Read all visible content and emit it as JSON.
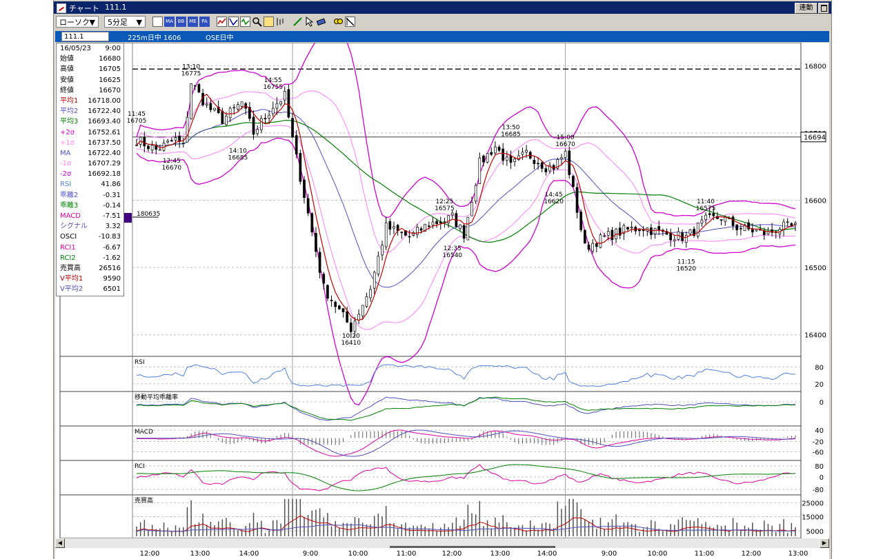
{
  "window": {
    "title": "チャート",
    "symbol": "111.1",
    "link_label": "連動"
  },
  "toolbar": {
    "chart_type": "ローソク",
    "interval": "5分足",
    "buttons": [
      "MA",
      "BB",
      "ME",
      "PA"
    ]
  },
  "symbol_bar": {
    "code": "111.1",
    "name": "225m日中 1606",
    "market": "OSE日中"
  },
  "info": [
    {
      "k": "16/05/23",
      "v": "9:00",
      "c": "#000000"
    },
    {
      "k": "始値",
      "v": "16680",
      "c": "#000000"
    },
    {
      "k": "高値",
      "v": "16705",
      "c": "#000000"
    },
    {
      "k": "安値",
      "v": "16625",
      "c": "#000000"
    },
    {
      "k": "終値",
      "v": "16670",
      "c": "#000000"
    },
    {
      "k": "平均1",
      "v": "16718.00",
      "c": "#c00000"
    },
    {
      "k": "平均2",
      "v": "16722.40",
      "c": "#5050c0"
    },
    {
      "k": "平均3",
      "v": "16693.40",
      "c": "#008000"
    },
    {
      "k": "+2σ",
      "v": "16752.61",
      "c": "#d000d0"
    },
    {
      "k": "+1σ",
      "v": "16737.50",
      "c": "#ff80ff"
    },
    {
      "k": "MA",
      "v": "16722.40",
      "c": "#5050c0"
    },
    {
      "k": "-1σ",
      "v": "16707.29",
      "c": "#ff80ff"
    },
    {
      "k": "-2σ",
      "v": "16692.18",
      "c": "#d000d0"
    },
    {
      "k": "RSI",
      "v": "41.86",
      "c": "#5080e0"
    },
    {
      "k": "乖離2",
      "v": "-0.31",
      "c": "#5050c0"
    },
    {
      "k": "乖離3",
      "v": "-0.14",
      "c": "#008000"
    },
    {
      "k": "MACD",
      "v": "-7.51",
      "c": "#e000a0"
    },
    {
      "k": "シグナル",
      "v": "3.32",
      "c": "#5050c0"
    },
    {
      "k": "OSCI",
      "v": "-10.83",
      "c": "#000000"
    },
    {
      "k": "RCI1",
      "v": "-6.67",
      "c": "#e000a0"
    },
    {
      "k": "RCI2",
      "v": "-1.62",
      "c": "#008000"
    },
    {
      "k": "売買高",
      "v": "26516",
      "c": "#000000"
    },
    {
      "k": "V平均1",
      "v": "9590",
      "c": "#c00000"
    },
    {
      "k": "V平均2",
      "v": "6501",
      "c": "#5050c0"
    }
  ],
  "price_axis": {
    "ticks": [
      "16800",
      "16700",
      "16600",
      "16500",
      "16400"
    ],
    "current": "16694"
  },
  "volume_marker": "180635",
  "annotations": [
    {
      "t": "11:45",
      "p": "16705",
      "price": 16705,
      "time_index": 0,
      "above": true
    },
    {
      "t": "12:45",
      "p": "16670",
      "price": 16670,
      "time_index": 9,
      "above": false
    },
    {
      "t": "13:10",
      "p": "16775",
      "price": 16775,
      "time_index": 14,
      "above": true
    },
    {
      "t": "14:10",
      "p": "16685",
      "price": 16685,
      "time_index": 26,
      "above": false
    },
    {
      "t": "14:55",
      "p": "16755",
      "price": 16755,
      "time_index": 35,
      "above": true
    },
    {
      "t": "10:20",
      "p": "16410",
      "price": 16410,
      "time_index": 55,
      "above": false
    },
    {
      "t": "12:25",
      "p": "16575",
      "price": 16575,
      "time_index": 79,
      "above": true
    },
    {
      "t": "12:35",
      "p": "16540",
      "price": 16540,
      "time_index": 81,
      "above": false
    },
    {
      "t": "13:50",
      "p": "16685",
      "price": 16685,
      "time_index": 96,
      "above": true
    },
    {
      "t": "14:45",
      "p": "16620",
      "price": 16620,
      "time_index": 107,
      "above": false
    },
    {
      "t": "15:00",
      "p": "16670",
      "price": 16670,
      "time_index": 110,
      "above": true
    },
    {
      "t": "11:15",
      "p": "16520",
      "price": 16520,
      "time_index": 141,
      "above": false
    },
    {
      "t": "11:40",
      "p": "16575",
      "price": 16575,
      "time_index": 146,
      "above": true
    }
  ],
  "subpanels": {
    "rsi": {
      "label": "RSI",
      "ticks": [
        "80",
        "20"
      ]
    },
    "dev": {
      "label": "移動平均乖離率",
      "ticks": [
        "0"
      ]
    },
    "macd": {
      "label": "MACD",
      "ticks": [
        "40",
        "-20",
        "-60"
      ]
    },
    "rci": {
      "label": "RCI",
      "ticks": [
        "80",
        "0",
        "-80"
      ]
    },
    "vol": {
      "label": "売買高",
      "ticks": [
        "25000",
        "15000",
        "5000"
      ]
    }
  },
  "time_labels": [
    "12:00",
    "13:00",
    "14:00",
    "9:00",
    "10:00",
    "11:00",
    "12:00",
    "13:00",
    "14:00",
    "9:00",
    "10:00",
    "11:00",
    "12:00",
    "13:00"
  ],
  "colors": {
    "title_bar": "#0a246a",
    "symbol_bar": "#0a58b8",
    "ma1": "#c00000",
    "ma2": "#5050c0",
    "ma3": "#008000",
    "bb2": "#d000d0",
    "bb1": "#ff80ff",
    "rsi": "#5080e0"
  },
  "chart_data": {
    "type": "candlestick",
    "ylim": [
      16370,
      16830
    ],
    "anchor_prices": [
      16690,
      16675,
      16690,
      16680,
      16775,
      16740,
      16720,
      16745,
      16700,
      16740,
      16755,
      16690,
      16470,
      16410,
      16470,
      16560,
      16545,
      16565,
      16570,
      16575,
      16550,
      16655,
      16680,
      16650,
      16670,
      16650,
      16650,
      16670,
      16530,
      16545,
      16555,
      16560,
      16550,
      16545,
      16570,
      16575,
      16560,
      16555,
      16550,
      16560
    ],
    "anchor_index": [
      0,
      5,
      10,
      12,
      14,
      18,
      22,
      27,
      30,
      35,
      38,
      40,
      48,
      55,
      60,
      64,
      70,
      75,
      79,
      81,
      84,
      88,
      92,
      96,
      100,
      105,
      107,
      110,
      115,
      120,
      125,
      130,
      135,
      141,
      146,
      150,
      154,
      158,
      162,
      165
    ],
    "hline": 16795,
    "session_breaks": [
      40,
      110
    ]
  }
}
